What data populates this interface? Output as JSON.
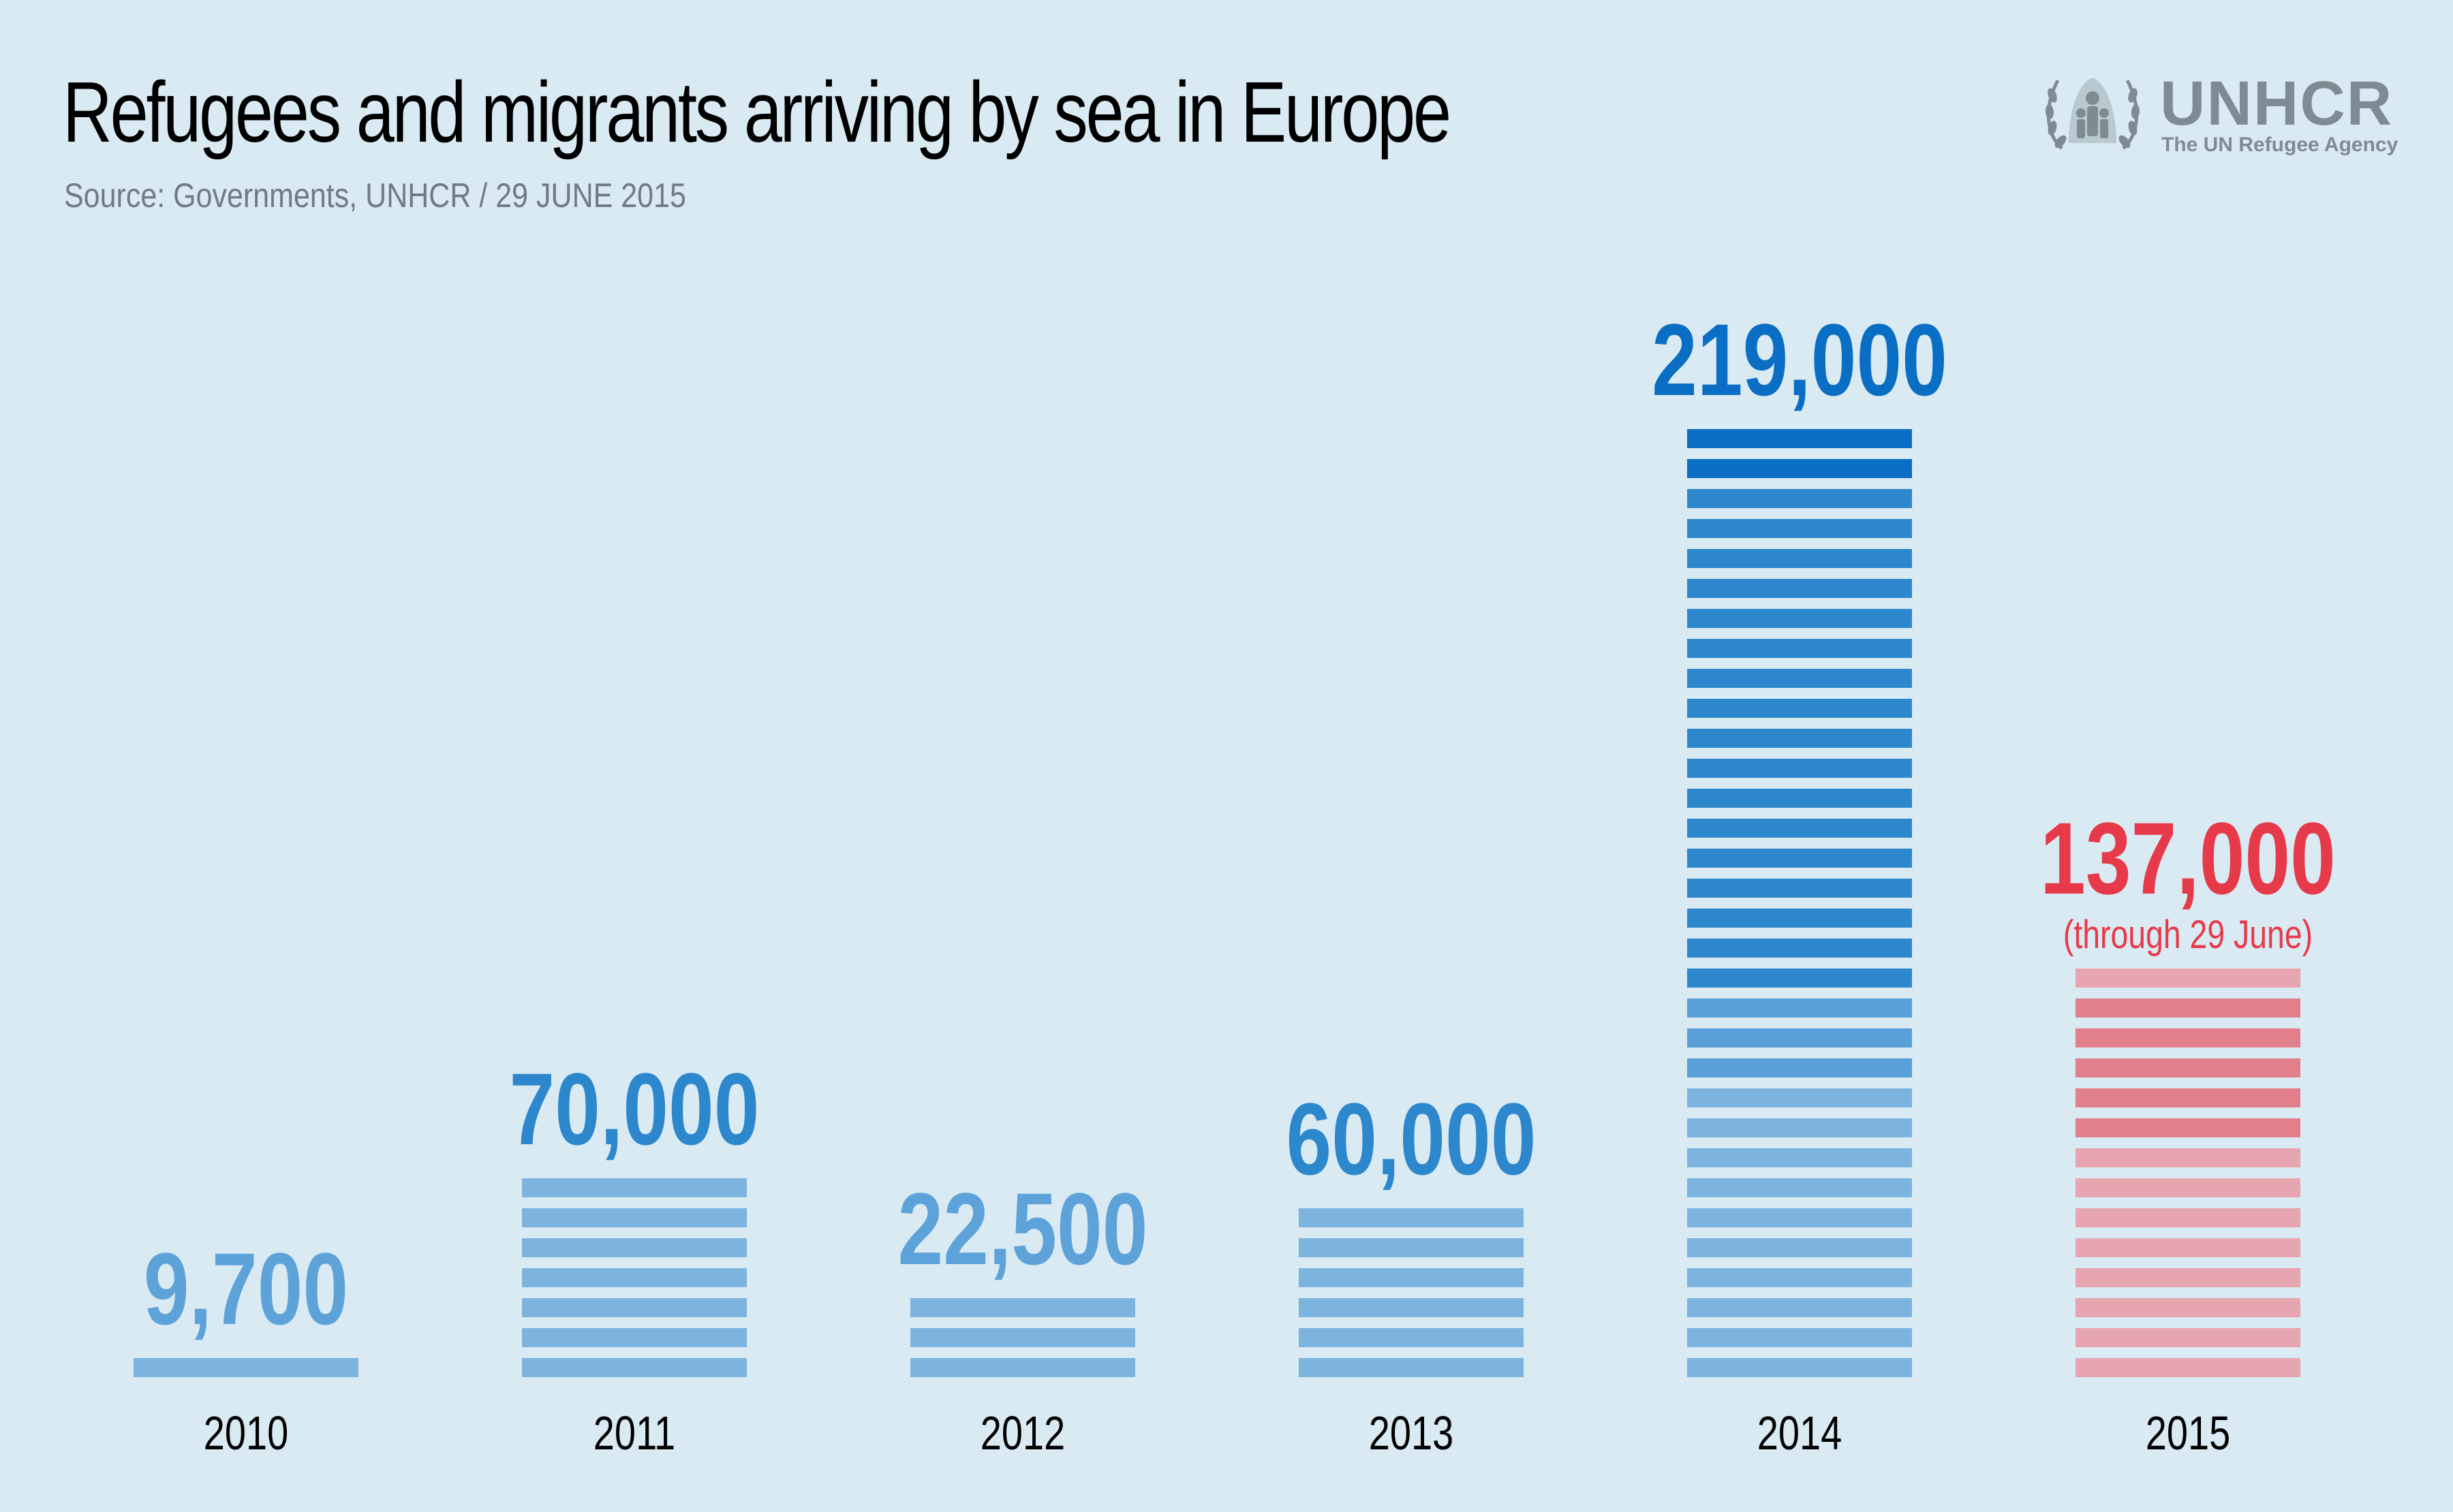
{
  "title": "Refugees and migrants arriving by sea in Europe",
  "source": "Source: Governments, UNHCR / 29 JUNE 2015",
  "logo": {
    "name": "UNHCR",
    "tagline": "The UN Refugee Agency",
    "icon": "unhcr-emblem-icon"
  },
  "colors": {
    "background": "#d9eaf2",
    "blue_dark": "#0a6ec4",
    "blue_mid": "#2d87cc",
    "blue_light": "#7db3df",
    "red": "#e63a4a",
    "red_light": "#e6a5b0",
    "red_mid": "#e17f8d"
  },
  "chart_data": {
    "type": "bar",
    "title": "Refugees and migrants arriving by sea in Europe",
    "categories": [
      "2010",
      "2011",
      "2012",
      "2013",
      "2014",
      "2015"
    ],
    "values": [
      9700,
      70000,
      22500,
      60000,
      219000,
      137000
    ],
    "value_labels": [
      "9,700",
      "70,000",
      "22,500",
      "60,000",
      "219,000",
      "137,000"
    ],
    "annotations": [
      "",
      "",
      "",
      "",
      "",
      "(through 29 June)"
    ],
    "highlight_color": [
      "blue",
      "blue",
      "blue",
      "blue",
      "blue",
      "red"
    ],
    "stripes": [
      1,
      7,
      3,
      6,
      32,
      14
    ],
    "xlabel": "",
    "ylabel": "",
    "ylim": [
      0,
      219000
    ],
    "grid": false,
    "legend": "none"
  }
}
